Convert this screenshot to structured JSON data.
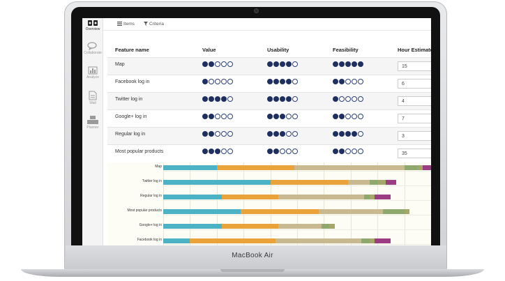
{
  "device": {
    "model": "MacBook Air"
  },
  "sidebar": {
    "items": [
      {
        "label": "Overview",
        "icon": "overview-icon"
      },
      {
        "label": "Collaborate",
        "icon": "chat-icon"
      },
      {
        "label": "Analyze",
        "icon": "analyze-icon"
      },
      {
        "label": "Wall",
        "icon": "wall-icon"
      },
      {
        "label": "Planner",
        "icon": "planner-icon"
      }
    ]
  },
  "tabs": [
    {
      "label": "Items",
      "icon": "list-icon"
    },
    {
      "label": "Criteria",
      "icon": "filter-icon"
    }
  ],
  "table": {
    "headers": [
      "Feature name",
      "Value",
      "Usability",
      "Feasibility",
      "Hour Estimate"
    ],
    "rows": [
      {
        "name": "Map",
        "value": 2,
        "usability": 4,
        "feasibility": 5,
        "hours": "15"
      },
      {
        "name": "Facebook log in",
        "value": 1,
        "usability": 4,
        "feasibility": 2,
        "hours": "6"
      },
      {
        "name": "Twitter log in",
        "value": 4,
        "usability": 4,
        "feasibility": 1,
        "hours": "4"
      },
      {
        "name": "Google+ log in",
        "value": 2,
        "usability": 3,
        "feasibility": 2,
        "hours": "7"
      },
      {
        "name": "Regular log in",
        "value": 2,
        "usability": 3,
        "feasibility": 4,
        "hours": "3"
      },
      {
        "name": "Most popular products",
        "value": 3,
        "usability": 2,
        "feasibility": 2,
        "hours": "35"
      }
    ]
  },
  "colors": {
    "teal": "#4cb3c7",
    "orange": "#eaa23a",
    "tan": "#c8b991",
    "green": "#8fa86e",
    "olive": "#a3a86a",
    "magenta": "#9c3c82",
    "dot": "#1f2f60"
  },
  "chart_data": {
    "type": "bar",
    "stacked": true,
    "orientation": "horizontal",
    "categories": [
      "Map",
      "Twitter log in",
      "Regular log in",
      "Most popular products",
      "Google+ log in",
      "Facebook log in"
    ],
    "series": [
      {
        "color": "#4cb3c7",
        "values": [
          20,
          40,
          22,
          29,
          22,
          10
        ]
      },
      {
        "color": "#eaa23a",
        "values": [
          29,
          29,
          21,
          29,
          21,
          32
        ]
      },
      {
        "color": "#c8b991",
        "values": [
          41,
          8,
          32,
          24,
          16,
          32
        ]
      },
      {
        "color": "#8fa86e",
        "values": [
          5,
          3,
          2,
          8,
          3,
          3
        ]
      },
      {
        "color": "#a3a86a",
        "values": [
          2,
          3,
          2,
          2,
          2,
          2
        ]
      },
      {
        "color": "#9c3c82",
        "values": [
          3,
          4,
          6,
          0,
          0,
          6
        ]
      }
    ],
    "xlim": [
      0,
      100
    ],
    "grid": true
  }
}
